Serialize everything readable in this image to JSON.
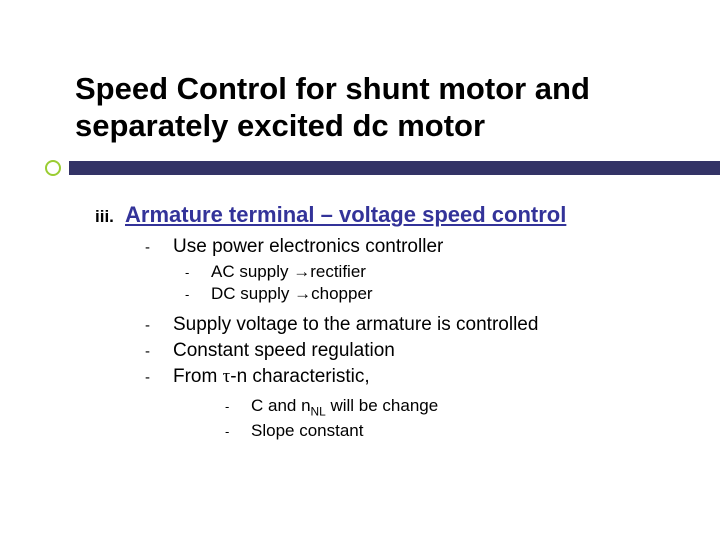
{
  "title": "Speed Control for shunt motor and separately excited dc motor",
  "roman_numeral": "iii.",
  "section_title": "Armature terminal – voltage speed control",
  "l1_items": {
    "a": "Use power electronics controller",
    "b": "Supply voltage to the armature is controlled",
    "c": "Constant speed regulation",
    "d_pre": "From ",
    "d_tau": "τ",
    "d_post": "-n characteristic,"
  },
  "l2_items": {
    "a_pre": "AC supply ",
    "a_arrow": "→",
    "a_post": "rectifier",
    "b_pre": "DC supply ",
    "b_arrow": "→",
    "b_post": "chopper"
  },
  "l3_items": {
    "a_pre": "C and n",
    "a_sub": "NL",
    "a_post": " will be change",
    "b": "Slope constant"
  },
  "colors": {
    "title_color": "#000000",
    "section_color": "#333399",
    "accent_bar": "#333366",
    "accent_ring": "#9acd32",
    "text": "#000000",
    "background": "#ffffff"
  },
  "bullets": {
    "dash": "-"
  }
}
